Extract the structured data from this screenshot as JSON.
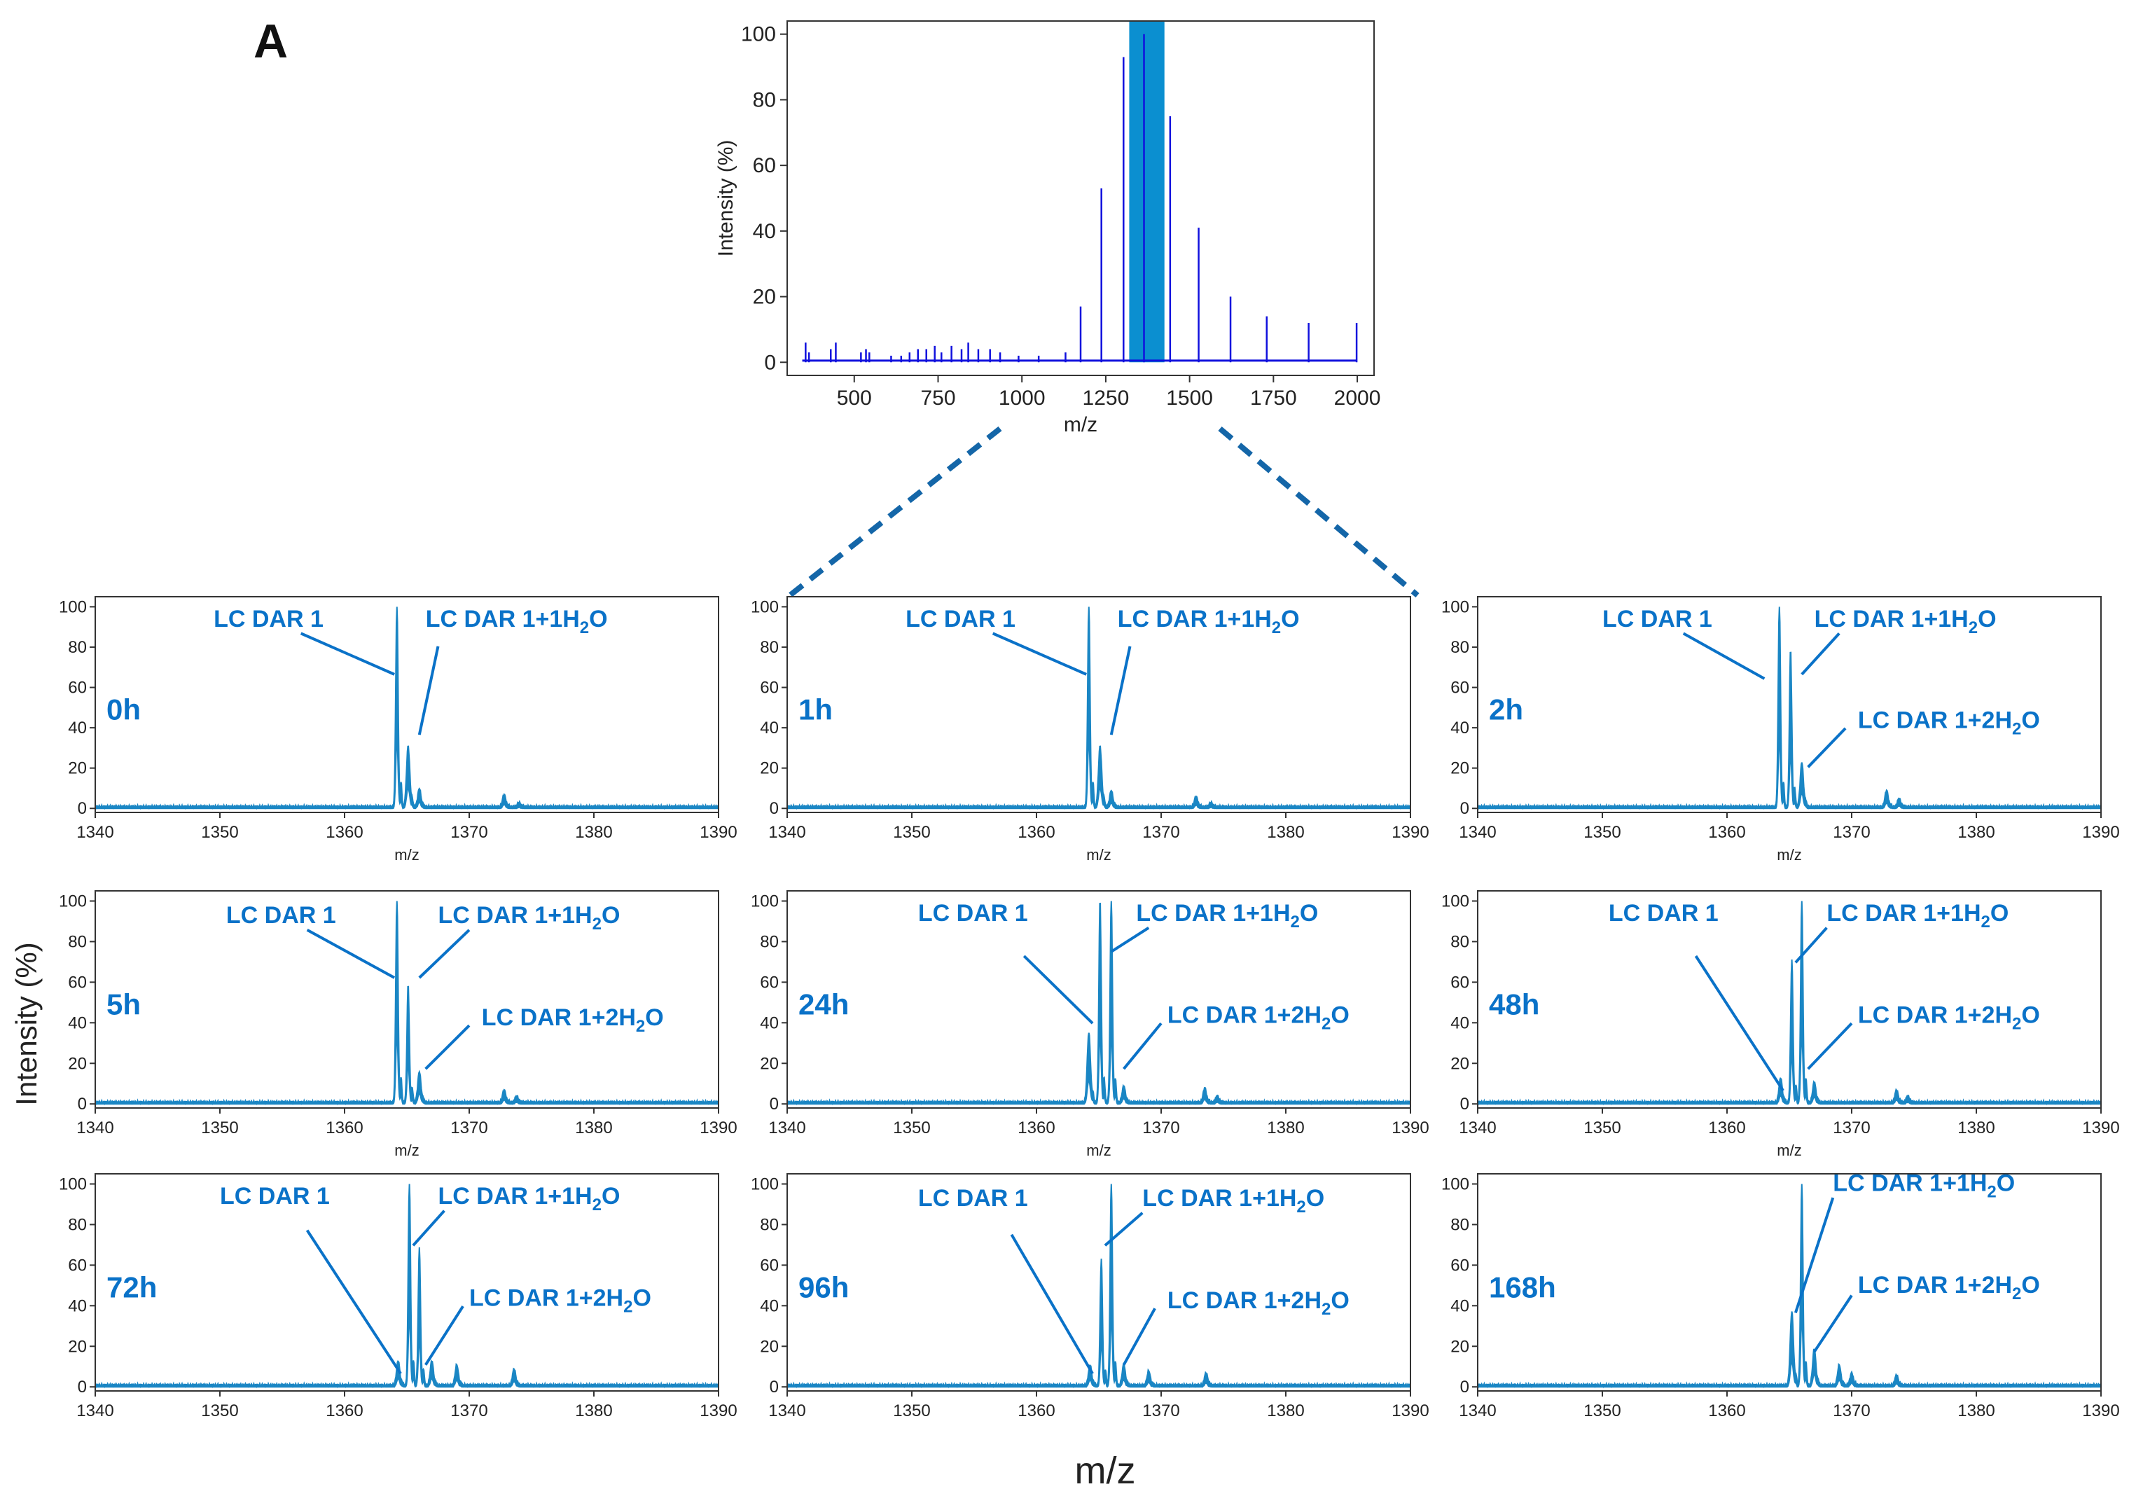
{
  "figure": {
    "panel_label": "A",
    "shared_ylabel": "Intensity (%)",
    "shared_xlabel": "m/z"
  },
  "chart_data": [
    {
      "type": "line",
      "role": "overview",
      "title": "",
      "xlabel": "m/z",
      "ylabel": "Intensity (%)",
      "xlim": [
        300,
        2050
      ],
      "ylim": [
        -4,
        104
      ],
      "xticks": [
        500,
        750,
        1000,
        1250,
        1500,
        1750,
        2000
      ],
      "yticks": [
        0,
        20,
        40,
        60,
        80,
        100
      ],
      "highlight": {
        "x_from": 1320,
        "x_to": 1425,
        "color": "#0b8fd0"
      },
      "peaks": [
        {
          "x": 355,
          "y": 6
        },
        {
          "x": 365,
          "y": 3
        },
        {
          "x": 430,
          "y": 4
        },
        {
          "x": 445,
          "y": 6
        },
        {
          "x": 520,
          "y": 3
        },
        {
          "x": 535,
          "y": 4
        },
        {
          "x": 545,
          "y": 3
        },
        {
          "x": 610,
          "y": 2
        },
        {
          "x": 640,
          "y": 2
        },
        {
          "x": 665,
          "y": 3
        },
        {
          "x": 690,
          "y": 4
        },
        {
          "x": 715,
          "y": 4
        },
        {
          "x": 740,
          "y": 5
        },
        {
          "x": 760,
          "y": 3
        },
        {
          "x": 790,
          "y": 5
        },
        {
          "x": 820,
          "y": 4
        },
        {
          "x": 840,
          "y": 6
        },
        {
          "x": 870,
          "y": 4
        },
        {
          "x": 905,
          "y": 4
        },
        {
          "x": 935,
          "y": 3
        },
        {
          "x": 990,
          "y": 2
        },
        {
          "x": 1050,
          "y": 2
        },
        {
          "x": 1130,
          "y": 3
        },
        {
          "x": 1175,
          "y": 17
        },
        {
          "x": 1237,
          "y": 53
        },
        {
          "x": 1303,
          "y": 93
        },
        {
          "x": 1364,
          "y": 100
        },
        {
          "x": 1442,
          "y": 75
        },
        {
          "x": 1527,
          "y": 41
        },
        {
          "x": 1622,
          "y": 20
        },
        {
          "x": 1730,
          "y": 14
        },
        {
          "x": 1855,
          "y": 12
        },
        {
          "x": 1998,
          "y": 12
        }
      ]
    },
    {
      "type": "line",
      "role": "zoom",
      "time": "0h",
      "xlabel": "m/z",
      "xlim": [
        1340,
        1390
      ],
      "ylim": [
        -2,
        105
      ],
      "xticks": [
        1340,
        1350,
        1360,
        1370,
        1380,
        1390
      ],
      "yticks": [
        0,
        20,
        40,
        60,
        80,
        100
      ],
      "peaks": [
        {
          "x": 1364.2,
          "y": 100
        },
        {
          "x": 1365.1,
          "y": 30
        },
        {
          "x": 1366.0,
          "y": 9
        },
        {
          "x": 1372.8,
          "y": 6
        },
        {
          "x": 1374.0,
          "y": 2
        }
      ],
      "annotations": [
        {
          "text": "LC DAR 1",
          "sub": "",
          "tail": ""
        },
        {
          "text": "LC DAR 1+1H",
          "sub": "2",
          "tail": "O"
        }
      ]
    },
    {
      "type": "line",
      "role": "zoom",
      "time": "1h",
      "xlabel": "m/z",
      "xlim": [
        1340,
        1390
      ],
      "ylim": [
        -2,
        105
      ],
      "xticks": [
        1340,
        1350,
        1360,
        1370,
        1380,
        1390
      ],
      "yticks": [
        0,
        20,
        40,
        60,
        80,
        100
      ],
      "peaks": [
        {
          "x": 1364.2,
          "y": 100
        },
        {
          "x": 1365.1,
          "y": 30
        },
        {
          "x": 1366.0,
          "y": 8
        },
        {
          "x": 1372.8,
          "y": 5
        },
        {
          "x": 1374.0,
          "y": 2
        }
      ],
      "annotations": [
        {
          "text": "LC DAR 1",
          "sub": "",
          "tail": ""
        },
        {
          "text": "LC DAR 1+1H",
          "sub": "2",
          "tail": "O"
        }
      ]
    },
    {
      "type": "line",
      "role": "zoom",
      "time": "2h",
      "xlabel": "m/z",
      "xlim": [
        1340,
        1390
      ],
      "ylim": [
        -2,
        105
      ],
      "xticks": [
        1340,
        1350,
        1360,
        1370,
        1380,
        1390
      ],
      "yticks": [
        0,
        20,
        40,
        60,
        80,
        100
      ],
      "peaks": [
        {
          "x": 1364.2,
          "y": 100
        },
        {
          "x": 1365.1,
          "y": 78
        },
        {
          "x": 1366.0,
          "y": 22
        },
        {
          "x": 1372.8,
          "y": 8
        },
        {
          "x": 1373.8,
          "y": 4
        }
      ],
      "annotations": [
        {
          "text": "LC DAR 1",
          "sub": "",
          "tail": ""
        },
        {
          "text": "LC DAR 1+1H",
          "sub": "2",
          "tail": "O"
        },
        {
          "text": "LC DAR 1+2H",
          "sub": "2",
          "tail": "O"
        }
      ]
    },
    {
      "type": "line",
      "role": "zoom",
      "time": "5h",
      "xlabel": "m/z",
      "xlim": [
        1340,
        1390
      ],
      "ylim": [
        -2,
        105
      ],
      "xticks": [
        1340,
        1350,
        1360,
        1370,
        1380,
        1390
      ],
      "yticks": [
        0,
        20,
        40,
        60,
        80,
        100
      ],
      "peaks": [
        {
          "x": 1364.2,
          "y": 100
        },
        {
          "x": 1365.1,
          "y": 58
        },
        {
          "x": 1366.0,
          "y": 15
        },
        {
          "x": 1372.8,
          "y": 6
        },
        {
          "x": 1373.8,
          "y": 3
        }
      ],
      "annotations": [
        {
          "text": "LC DAR 1",
          "sub": "",
          "tail": ""
        },
        {
          "text": "LC DAR 1+1H",
          "sub": "2",
          "tail": "O"
        },
        {
          "text": "LC DAR 1+2H",
          "sub": "2",
          "tail": "O"
        }
      ]
    },
    {
      "type": "line",
      "role": "zoom",
      "time": "24h",
      "xlabel": "m/z",
      "xlim": [
        1340,
        1390
      ],
      "ylim": [
        -2,
        105
      ],
      "xticks": [
        1340,
        1350,
        1360,
        1370,
        1380,
        1390
      ],
      "yticks": [
        0,
        20,
        40,
        60,
        80,
        100
      ],
      "peaks": [
        {
          "x": 1364.2,
          "y": 34
        },
        {
          "x": 1365.1,
          "y": 100
        },
        {
          "x": 1366.0,
          "y": 100
        },
        {
          "x": 1367.0,
          "y": 8
        },
        {
          "x": 1373.5,
          "y": 7
        },
        {
          "x": 1374.5,
          "y": 3
        }
      ],
      "annotations": [
        {
          "text": "LC DAR 1",
          "sub": "",
          "tail": ""
        },
        {
          "text": "LC DAR 1+1H",
          "sub": "2",
          "tail": "O"
        },
        {
          "text": "LC DAR 1+2H",
          "sub": "2",
          "tail": "O"
        }
      ]
    },
    {
      "type": "line",
      "role": "zoom",
      "time": "48h",
      "xlabel": "m/z",
      "xlim": [
        1340,
        1390
      ],
      "ylim": [
        -2,
        105
      ],
      "xticks": [
        1340,
        1350,
        1360,
        1370,
        1380,
        1390
      ],
      "yticks": [
        0,
        20,
        40,
        60,
        80,
        100
      ],
      "peaks": [
        {
          "x": 1364.3,
          "y": 12
        },
        {
          "x": 1365.2,
          "y": 70
        },
        {
          "x": 1366.0,
          "y": 100
        },
        {
          "x": 1367.0,
          "y": 10
        },
        {
          "x": 1373.6,
          "y": 6
        },
        {
          "x": 1374.5,
          "y": 3
        }
      ],
      "annotations": [
        {
          "text": "LC DAR 1",
          "sub": "",
          "tail": ""
        },
        {
          "text": "LC DAR 1+1H",
          "sub": "2",
          "tail": "O"
        },
        {
          "text": "LC DAR 1+2H",
          "sub": "2",
          "tail": "O"
        }
      ]
    },
    {
      "type": "line",
      "role": "zoom",
      "time": "72h",
      "xlabel": "",
      "xlim": [
        1340,
        1390
      ],
      "ylim": [
        -2,
        105
      ],
      "xticks": [
        1340,
        1350,
        1360,
        1370,
        1380,
        1390
      ],
      "yticks": [
        0,
        20,
        40,
        60,
        80,
        100
      ],
      "peaks": [
        {
          "x": 1364.3,
          "y": 12
        },
        {
          "x": 1365.2,
          "y": 100
        },
        {
          "x": 1366.0,
          "y": 68
        },
        {
          "x": 1367.0,
          "y": 12
        },
        {
          "x": 1369.0,
          "y": 10
        },
        {
          "x": 1373.6,
          "y": 8
        }
      ],
      "annotations": [
        {
          "text": "LC DAR 1",
          "sub": "",
          "tail": ""
        },
        {
          "text": "LC DAR 1+1H",
          "sub": "2",
          "tail": "O"
        },
        {
          "text": "LC DAR 1+2H",
          "sub": "2",
          "tail": "O"
        }
      ]
    },
    {
      "type": "line",
      "role": "zoom",
      "time": "96h",
      "xlabel": "",
      "xlim": [
        1340,
        1390
      ],
      "ylim": [
        -2,
        105
      ],
      "xticks": [
        1340,
        1350,
        1360,
        1370,
        1380,
        1390
      ],
      "yticks": [
        0,
        20,
        40,
        60,
        80,
        100
      ],
      "peaks": [
        {
          "x": 1364.3,
          "y": 10
        },
        {
          "x": 1365.2,
          "y": 62
        },
        {
          "x": 1366.0,
          "y": 100
        },
        {
          "x": 1367.0,
          "y": 10
        },
        {
          "x": 1369.0,
          "y": 7
        },
        {
          "x": 1373.6,
          "y": 6
        }
      ],
      "annotations": [
        {
          "text": "LC DAR 1",
          "sub": "",
          "tail": ""
        },
        {
          "text": "LC DAR 1+1H",
          "sub": "2",
          "tail": "O"
        },
        {
          "text": "LC DAR 1+2H",
          "sub": "2",
          "tail": "O"
        }
      ]
    },
    {
      "type": "line",
      "role": "zoom",
      "time": "168h",
      "xlabel": "",
      "xlim": [
        1340,
        1390
      ],
      "ylim": [
        -2,
        105
      ],
      "xticks": [
        1340,
        1350,
        1360,
        1370,
        1380,
        1390
      ],
      "yticks": [
        0,
        20,
        40,
        60,
        80,
        100
      ],
      "peaks": [
        {
          "x": 1365.2,
          "y": 36
        },
        {
          "x": 1366.0,
          "y": 100
        },
        {
          "x": 1367.0,
          "y": 18
        },
        {
          "x": 1369.0,
          "y": 10
        },
        {
          "x": 1370.0,
          "y": 6
        },
        {
          "x": 1373.6,
          "y": 5
        }
      ],
      "annotations": [
        {
          "text": "LC DAR 1+1H",
          "sub": "2",
          "tail": "O"
        },
        {
          "text": "LC DAR 1+2H",
          "sub": "2",
          "tail": "O"
        }
      ]
    }
  ]
}
